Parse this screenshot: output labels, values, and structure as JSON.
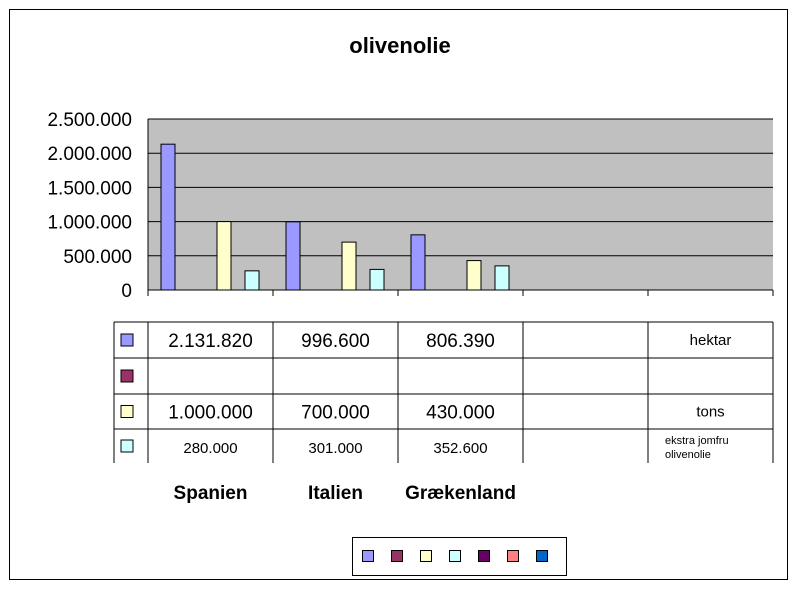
{
  "chart_data": {
    "type": "bar",
    "title": "olivenolie",
    "categories": [
      "Spanien",
      "Italien",
      "Grækenland",
      "",
      ""
    ],
    "ylim": [
      0,
      2500000
    ],
    "y_ticks": [
      "0",
      "500.000",
      "1.000.000",
      "1.500.000",
      "2.000.000",
      "2.500.000"
    ],
    "grid": true,
    "series": [
      {
        "name": "hektar",
        "color": "#9999ff",
        "values": [
          2131820,
          996600,
          806390,
          null,
          null
        ],
        "labels": [
          "2.131.820",
          "996.600",
          "806.390",
          "",
          ""
        ]
      },
      {
        "name": "",
        "color": "#993366",
        "values": [
          null,
          null,
          null,
          null,
          null
        ],
        "labels": [
          "",
          "",
          "",
          "",
          ""
        ]
      },
      {
        "name": "tons",
        "color": "#ffffcc",
        "values": [
          1000000,
          700000,
          430000,
          null,
          null
        ],
        "labels": [
          "1.000.000",
          "700.000",
          "430.000",
          "",
          ""
        ]
      },
      {
        "name": "ekstra jomfru olivenolie",
        "color": "#ccffff",
        "values": [
          280000,
          301000,
          352600,
          null,
          null
        ],
        "labels": [
          "280.000",
          "301.000",
          "352.600",
          "",
          ""
        ]
      }
    ],
    "extra_legend_colors": [
      "#660066",
      "#ff8080",
      "#0066cc"
    ]
  }
}
